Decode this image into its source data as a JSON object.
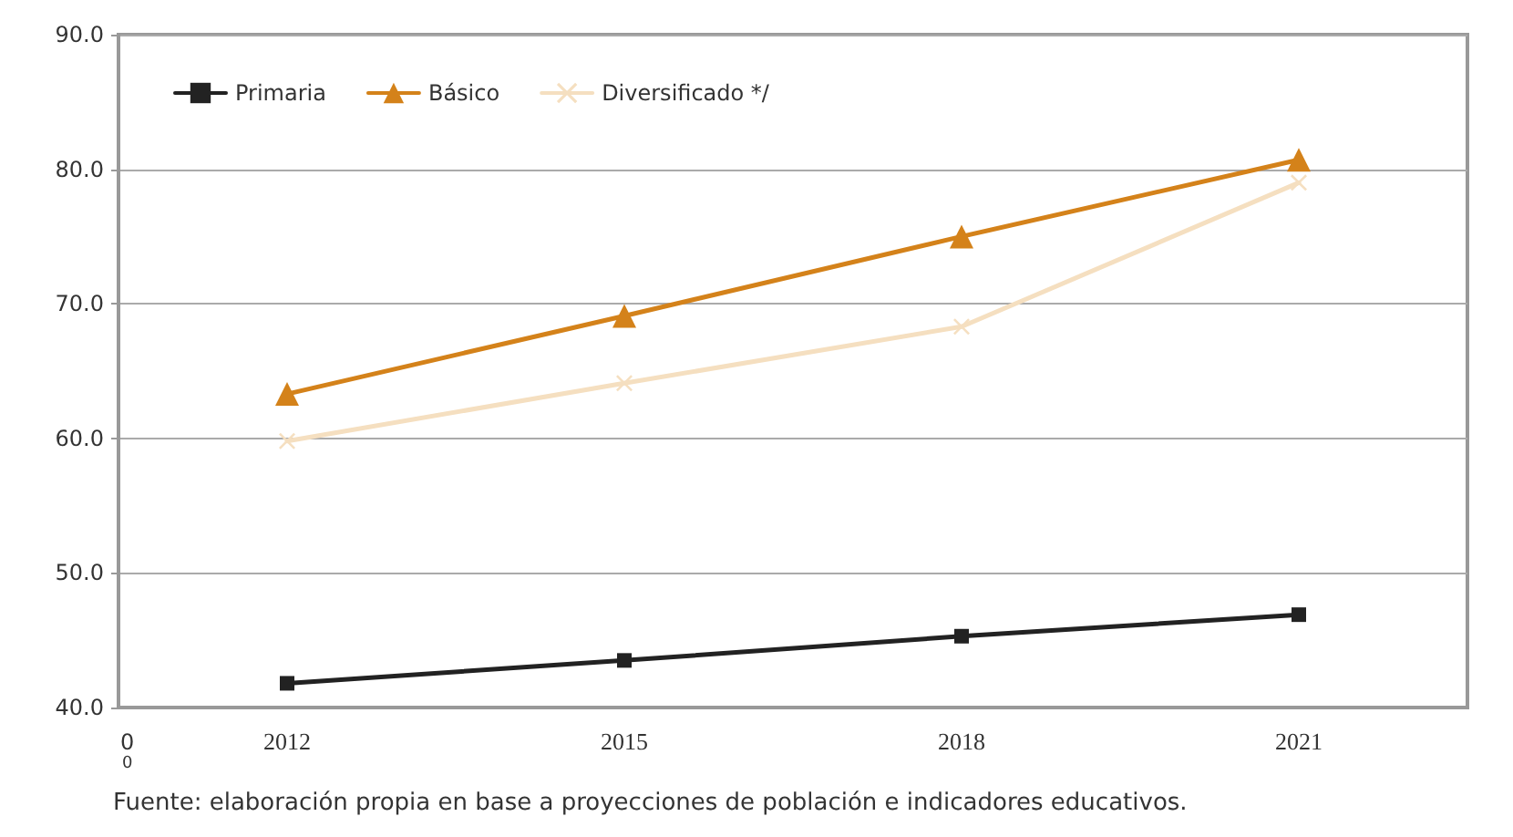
{
  "chart_data": {
    "type": "line",
    "categories": [
      "2012",
      "2015",
      "2018",
      "2021"
    ],
    "series": [
      {
        "name": "Primaria",
        "color": "#222222",
        "marker": "square",
        "values": [
          41.8,
          43.5,
          45.3,
          46.9
        ]
      },
      {
        "name": "Básico",
        "color": "#d4821a",
        "marker": "triangle",
        "values": [
          63.3,
          69.1,
          75.0,
          80.7
        ]
      },
      {
        "name": "Diversificado */",
        "color": "#f5dfc0",
        "marker": "cross",
        "values": [
          59.8,
          64.1,
          68.3,
          79.0
        ]
      }
    ],
    "ylim": [
      40,
      90
    ],
    "yticks": [
      {
        "value": 40,
        "label": "40.0"
      },
      {
        "value": 50,
        "label": "50.0"
      },
      {
        "value": 60,
        "label": "60.0"
      },
      {
        "value": 70,
        "label": "70.0"
      },
      {
        "value": 80,
        "label": "80.0"
      },
      {
        "value": 90,
        "label": "90.0"
      }
    ],
    "grid": "y",
    "legend": "top left",
    "line_style": "solid",
    "annotations": [
      "0",
      "0",
      "Fuente: elaboración propia en base a proyecciones de población e indicadores educativos."
    ]
  }
}
